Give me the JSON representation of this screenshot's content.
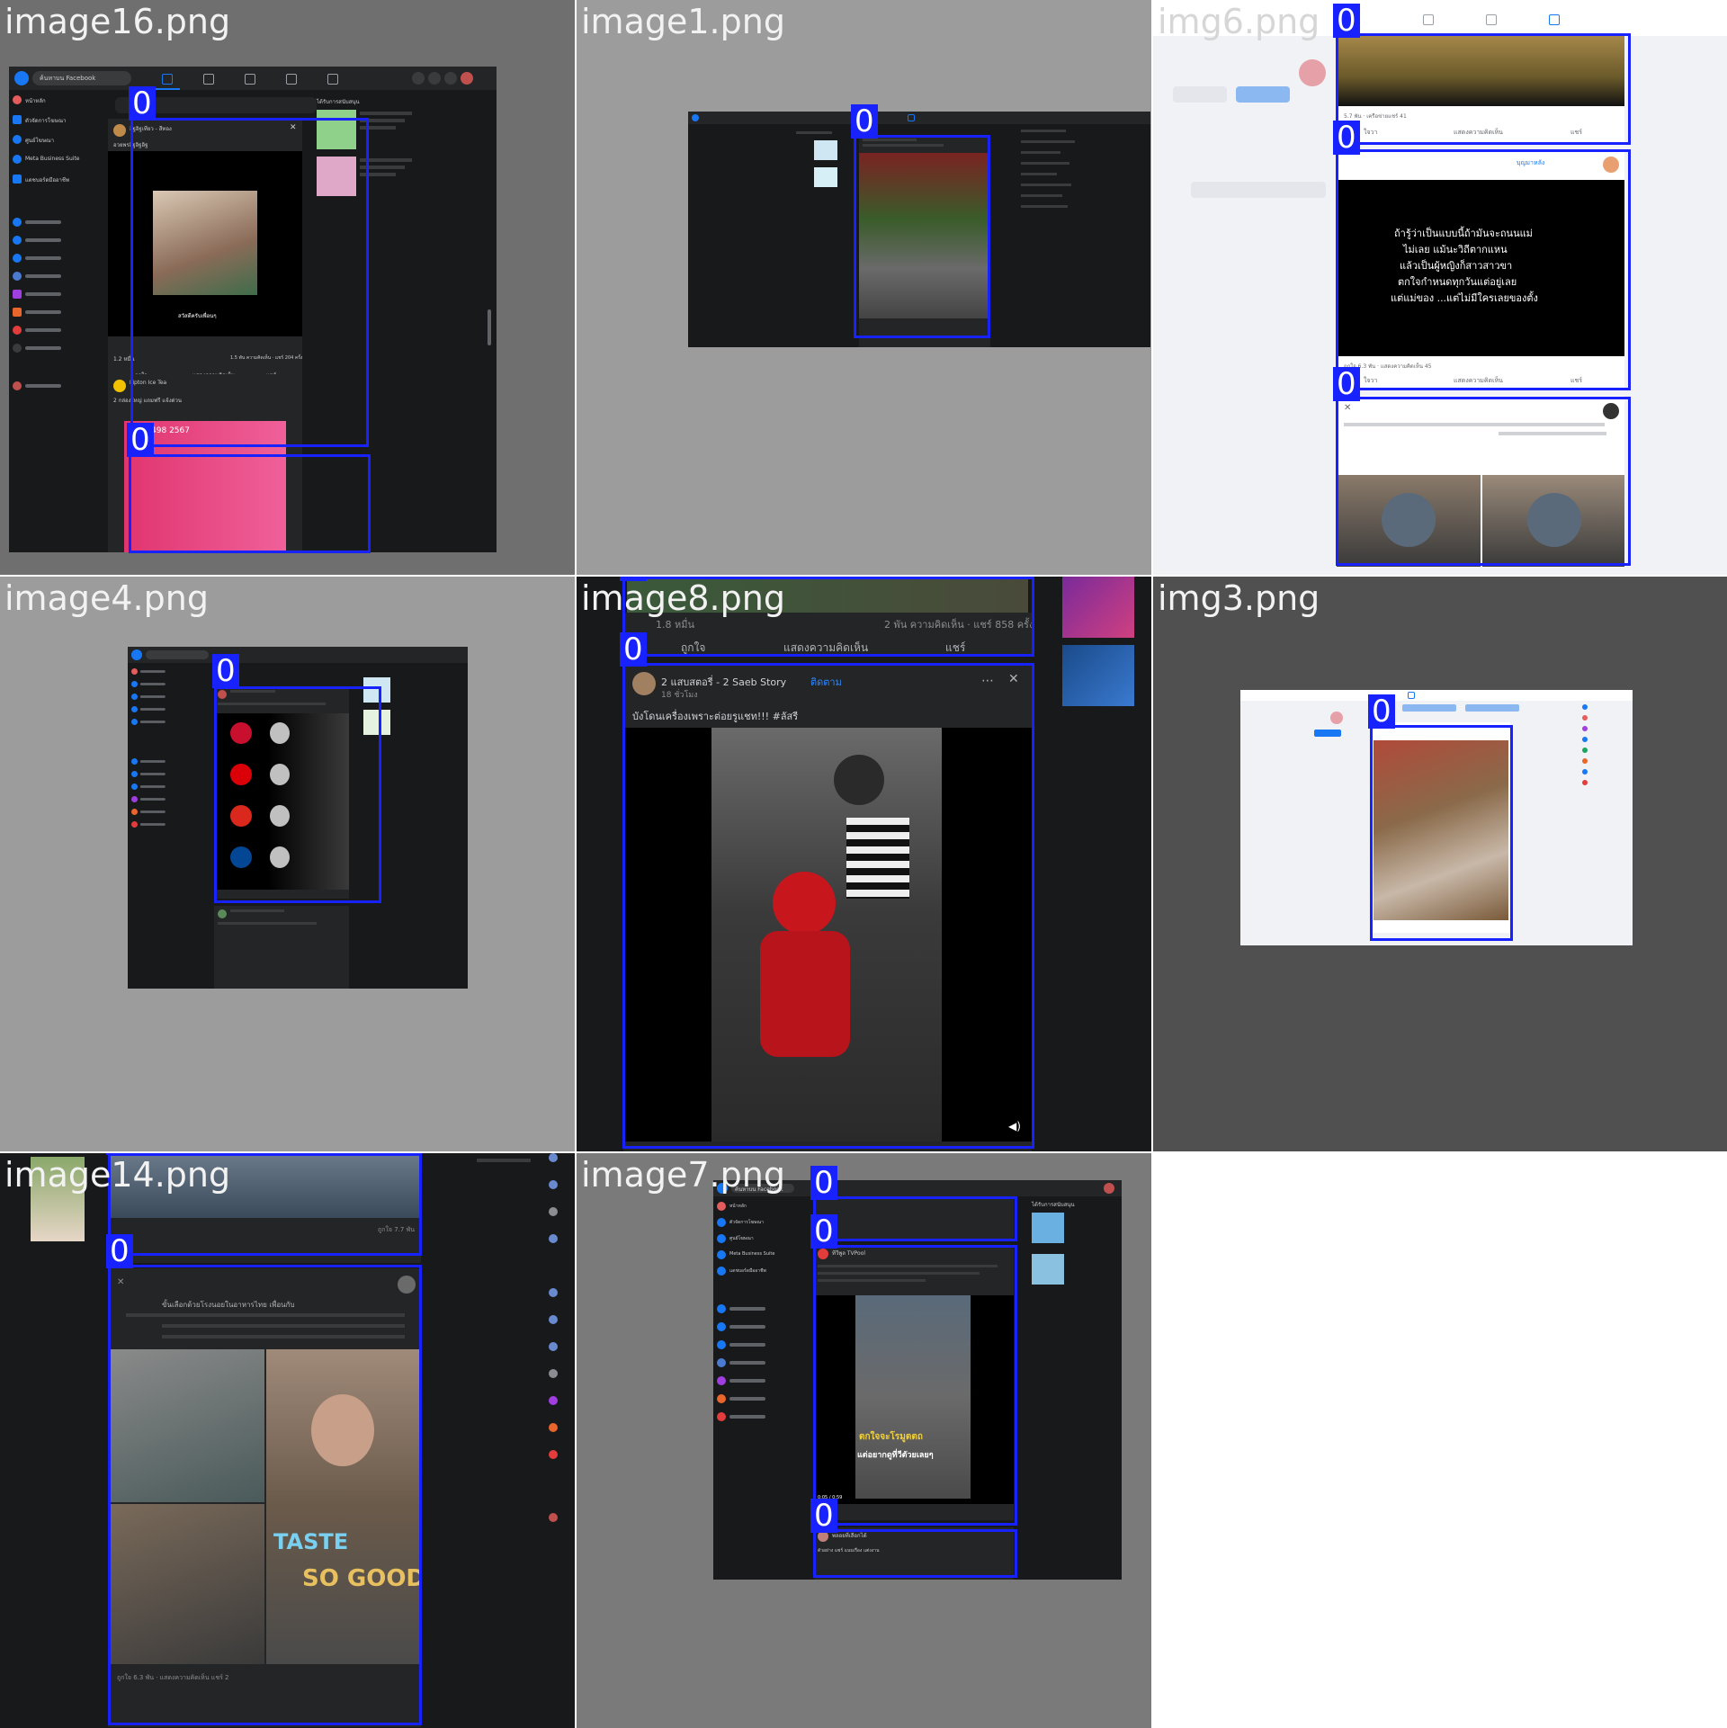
{
  "tiles": [
    {
      "file": "image16.png",
      "box_label": "0"
    },
    {
      "file": "image1.png",
      "box_label": "0"
    },
    {
      "file": "img6.png",
      "box_label": "0"
    },
    {
      "file": "image4.png",
      "box_label": "0"
    },
    {
      "file": "image8.png",
      "box_label": "0"
    },
    {
      "file": "img3.png",
      "box_label": "0"
    },
    {
      "file": "image14.png",
      "box_label": "0"
    },
    {
      "file": "image7.png",
      "box_label": "0"
    }
  ],
  "image16": {
    "search_placeholder": "ค้นหาบน Facebook",
    "sidebar": [
      "หน้าหลัก",
      "ตัวจัดการโฆษณา",
      "ศูนย์โฆษณา",
      "Meta Business Suite",
      "แดชบอร์ดมืออาชีพ"
    ],
    "sponsored_title": "ได้รับการสนับสนุน",
    "post1_author": "อิฐอิฐเทียว - สีทอง",
    "post1_caption": "อวยพรอิฐอิฐอิฐ",
    "post1_overlay": "สวัสดีครับเพื่อนๆ",
    "post1_stats_left": "1.2 หมื่น",
    "post1_stats_right": "1.5 พัน ความคิดเห็น · แชร์ 204 ครั้ง",
    "actions": [
      "ถูกใจ",
      "แสดงความคิดเห็น",
      "แชร์"
    ],
    "post2_author": "Lipton Ice Tea",
    "post2_caption": "2 กล่องใหญ่ แถมฟรี แจ้งด่วน",
    "post2_price": "00 3498 2567"
  },
  "image8": {
    "post_stats_left": "1.8 หมื่น",
    "post_stats_right": "2 พัน ความคิดเห็น · แชร์ 858 ครั้ง",
    "actions": [
      "ถูกใจ",
      "แสดงความคิดเห็น",
      "แชร์"
    ],
    "post_author": "2 แสบสตอรี่ - 2 Saeb Story",
    "follow_label": "ติดตาม",
    "post_time": "18 ชั่วโมง",
    "post_caption": "บังโดนเครื่องเพราะต่อยรูแชท!!! #ลัสรี"
  },
  "img6": {
    "post_meta": "5.7 พัน · เครือข่ายแชร์ 41",
    "actions": [
      "ใจวา",
      "แสดงความคิดเห็น",
      "แชร์"
    ],
    "post2_author": "บุญมาหลัง",
    "post2_text_lines": [
      "ถ้ารู้ว่าเป็นแบบนี้ถ้ามันจะถนนแม่",
      "ไม่เลย แม้นะวิถีตากแหน",
      "แล้วเป็นผู้หญิงก็สาวสาวขา",
      "ตกใจกำหนดทุกวันแต่อยู่เลย",
      "แต่แม่ของ ...แต่ไม่มีใครเลยของตั้ง"
    ],
    "post2_meta": "ถูกใจ 6.3 พัน · แสดงความคิดเห็น 45"
  },
  "image14": {
    "post_meta": "ถูกใจ 7.7 พัน",
    "post_text": "ขั้นเลือกด้วยโรงนอยในอาหารไทย เพื่อนกับ",
    "overlay_text_1": "TASTE",
    "overlay_text_2": "SO GOOD",
    "footer_meta": "ถูกใจ 6.3 พัน · แสดงความคิดเห็น แชร์ 2"
  },
  "image7": {
    "search_placeholder": "ค้นหาบน Facebook",
    "sidebar": [
      "หน้าหลัก",
      "ตัวจัดการโฆษณา",
      "ศูนย์โฆษณา",
      "Meta Business Suite",
      "แดชบอร์ดมืออาชีพ"
    ],
    "sponsored_title": "ได้รับการสนับสนุน",
    "post_author": "ทีวีพูล TVPool",
    "overlay_text_1": "ตกใจจะโรมูตตถ",
    "overlay_text_2": "แต่อยากดูที่วีตัวยเลยๆ",
    "video_time": "0:05 / 0:59",
    "post2_author": "พลอยที่เลือกได้",
    "post2_caption": "ตัวอย่าง แชร์ แนบเรื่อง แต่งงาน"
  },
  "colors": {
    "box_blue": "#1722ff",
    "fb_dark": "#18191a",
    "fb_panel": "#242526",
    "fb_blue": "#1877f2",
    "tile_gray": "#9a9a9a",
    "tile_dark": "#505050"
  }
}
